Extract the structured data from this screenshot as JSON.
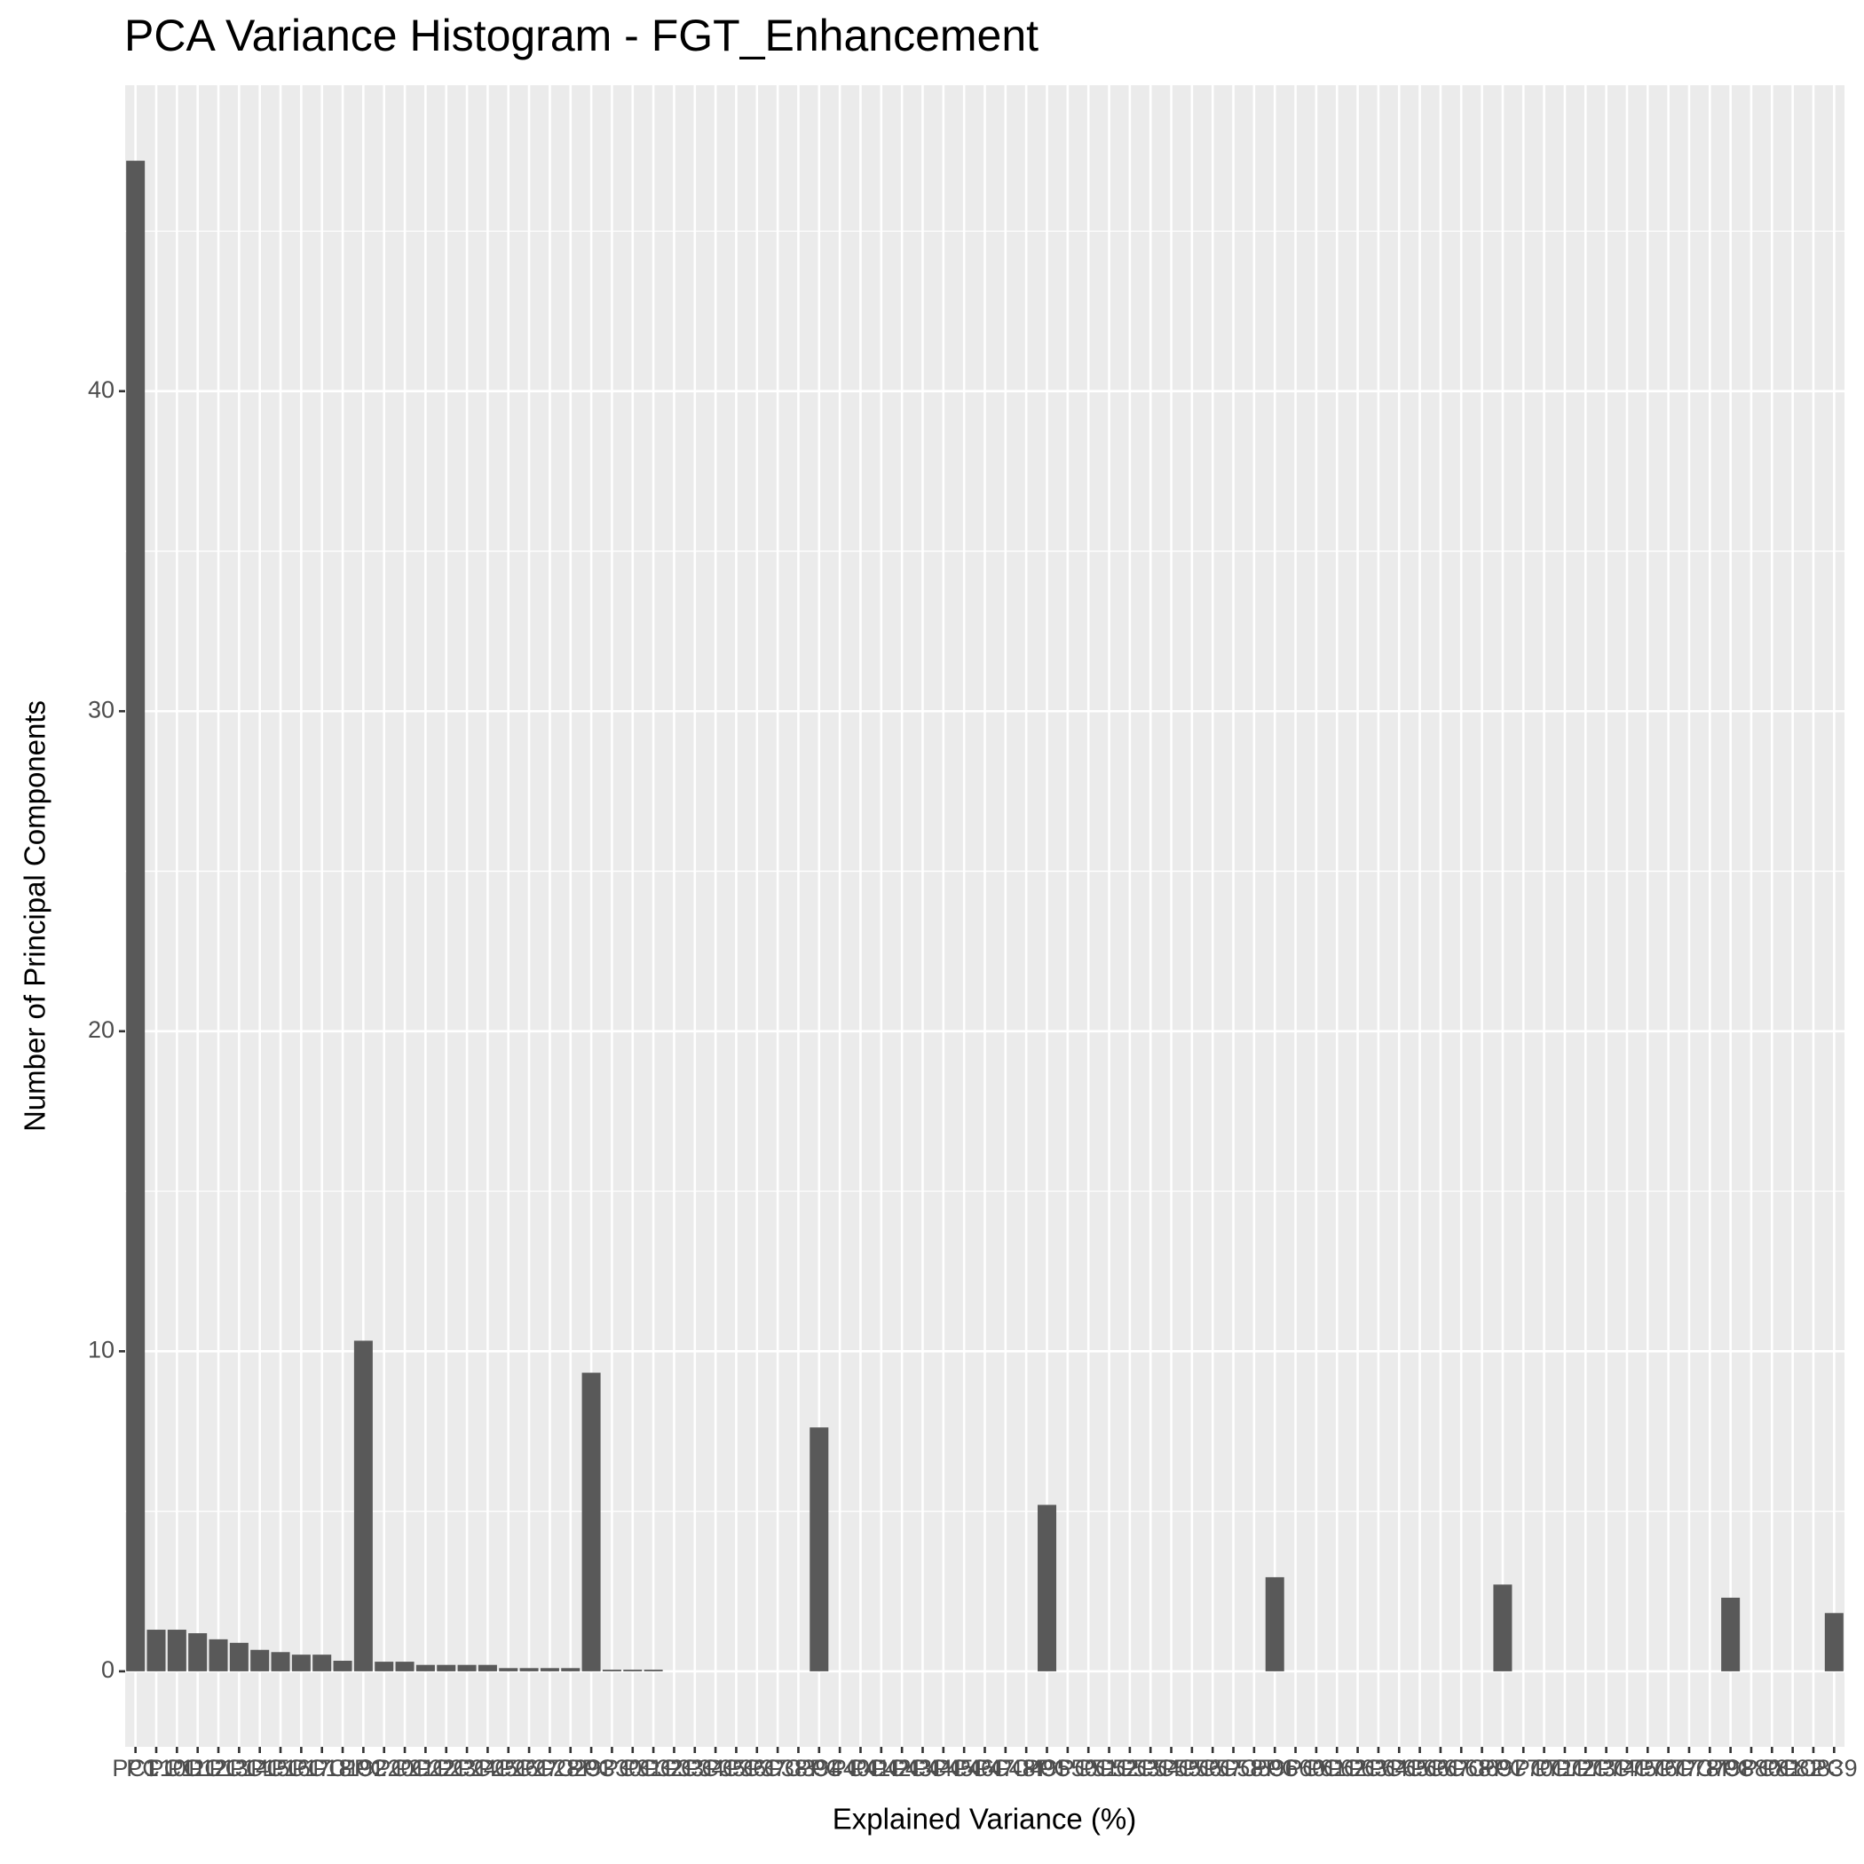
{
  "chart_data": {
    "type": "bar",
    "title": "PCA Variance Histogram - FGT_Enhancement",
    "x_label": "Explained Variance (%)",
    "y_label": "Number of Principal Components",
    "categories": [
      "PC1",
      "PC10",
      "PC11",
      "PC12",
      "PC13",
      "PC14",
      "PC15",
      "PC16",
      "PC17",
      "PC18",
      "PC19",
      "PC2",
      "PC20",
      "PC21",
      "PC22",
      "PC23",
      "PC24",
      "PC25",
      "PC26",
      "PC27",
      "PC28",
      "PC29",
      "PC3",
      "PC30",
      "PC31",
      "PC32",
      "PC33",
      "PC34",
      "PC35",
      "PC36",
      "PC37",
      "PC38",
      "PC39",
      "PC4",
      "PC40",
      "PC41",
      "PC42",
      "PC43",
      "PC44",
      "PC45",
      "PC46",
      "PC47",
      "PC48",
      "PC49",
      "PC5",
      "PC50",
      "PC51",
      "PC52",
      "PC53",
      "PC54",
      "PC55",
      "PC56",
      "PC57",
      "PC58",
      "PC59",
      "PC6",
      "PC60",
      "PC61",
      "PC62",
      "PC63",
      "PC64",
      "PC65",
      "PC66",
      "PC67",
      "PC68",
      "PC69",
      "PC7",
      "PC70",
      "PC71",
      "PC72",
      "PC73",
      "PC74",
      "PC75",
      "PC76",
      "PC77",
      "PC78",
      "PC79",
      "PC8",
      "PC80",
      "PC81",
      "PC82",
      "PC83",
      "PC9"
    ],
    "values": [
      47.2,
      1.3,
      1.3,
      1.19,
      1.0,
      0.89,
      0.67,
      0.6,
      0.52,
      0.52,
      0.33,
      10.33,
      0.3,
      0.3,
      0.2,
      0.2,
      0.2,
      0.2,
      0.1,
      0.1,
      0.1,
      0.1,
      9.33,
      0.05,
      0.05,
      0.05,
      0,
      0,
      0,
      0,
      0,
      0,
      0,
      7.62,
      0,
      0,
      0,
      0,
      0,
      0,
      0,
      0,
      0,
      0,
      5.2,
      0,
      0,
      0,
      0,
      0,
      0,
      0,
      0,
      0,
      0,
      2.94,
      0,
      0,
      0,
      0,
      0,
      0,
      0,
      0,
      0,
      0,
      2.71,
      0,
      0,
      0,
      0,
      0,
      0,
      0,
      0,
      0,
      0,
      2.3,
      0,
      0,
      0,
      0,
      1.82
    ],
    "color": "#595959",
    "ylim": [
      -2.36,
      49.56
    ],
    "yticks": [
      0,
      10,
      20,
      30,
      40
    ],
    "grid": true
  }
}
